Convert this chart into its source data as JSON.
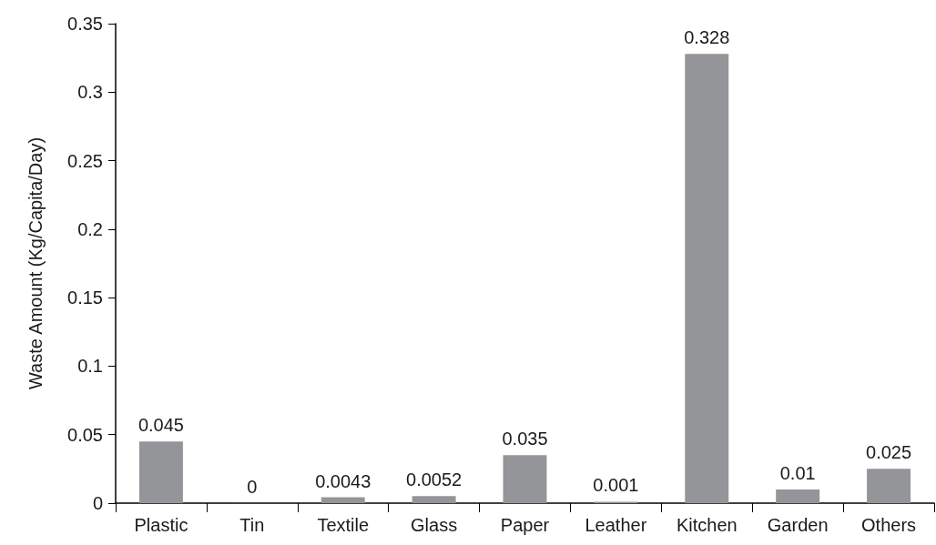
{
  "chart_data": {
    "type": "bar",
    "ylabel": "Waste Amount (Kg/Capita/Day)",
    "categories": [
      "Plastic",
      "Tin",
      "Textile",
      "Glass",
      "Paper",
      "Leather",
      "Kitchen",
      "Garden",
      "Others"
    ],
    "values": [
      0.045,
      0,
      0.0043,
      0.0052,
      0.035,
      0.001,
      0.328,
      0.01,
      0.025
    ],
    "color": "#939598",
    "ylim": [
      0,
      0.35
    ],
    "yticks": [
      0,
      0.05,
      0.1,
      0.15,
      0.2,
      0.25,
      0.3,
      0.35
    ],
    "grid": false,
    "data_labels": true
  }
}
